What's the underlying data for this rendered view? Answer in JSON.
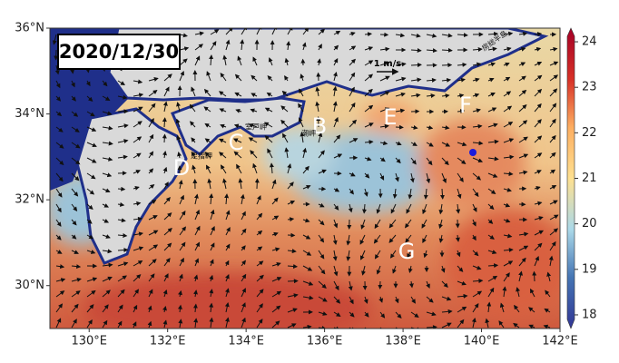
{
  "map": {
    "date_label": "2020/12/30",
    "scale_label": "1 m/s",
    "xlim": [
      129,
      142
    ],
    "ylim": [
      29,
      36
    ],
    "xticks": [
      {
        "value": 130,
        "label": "130°E"
      },
      {
        "value": 132,
        "label": "132°E"
      },
      {
        "value": 134,
        "label": "134°E"
      },
      {
        "value": 136,
        "label": "136°E"
      },
      {
        "value": 138,
        "label": "138°E"
      },
      {
        "value": 140,
        "label": "140°E"
      },
      {
        "value": 142,
        "label": "142°E"
      }
    ],
    "yticks": [
      {
        "value": 30,
        "label": "30°N"
      },
      {
        "value": 32,
        "label": "32°N"
      },
      {
        "value": 34,
        "label": "34°N"
      },
      {
        "value": 36,
        "label": "36°N"
      }
    ],
    "colorbar": {
      "lim": [
        17.7,
        24.3
      ],
      "ticks": [
        18,
        19,
        20,
        21,
        22,
        23,
        24
      ]
    },
    "point_labels": [
      "B",
      "C",
      "D",
      "E",
      "F",
      "G"
    ],
    "place_names": [
      "室戸岬",
      "足摺岬",
      "潮岬",
      "房総半島"
    ]
  }
}
